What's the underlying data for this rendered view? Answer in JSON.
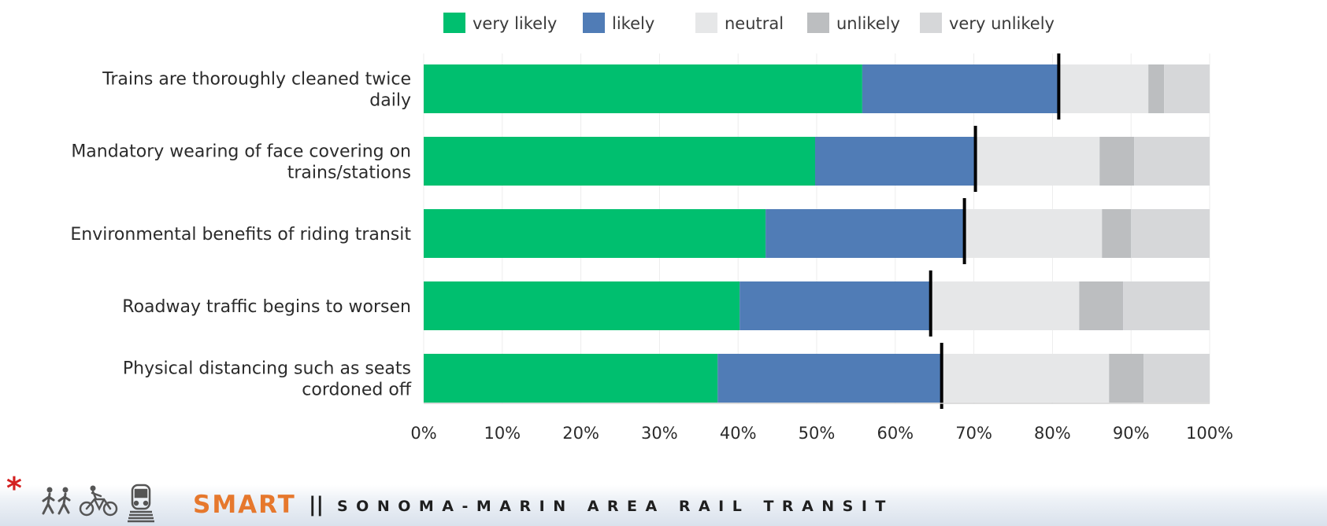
{
  "chart_data": {
    "type": "bar",
    "orientation": "horizontal",
    "stacked": true,
    "categories": [
      "Trains are thoroughly cleaned twice daily",
      "Mandatory wearing of face covering on trains/stations",
      "Environmental benefits of riding transit",
      "Roadway traffic begins to worsen",
      "Physical distancing such as seats cordoned off"
    ],
    "series": [
      {
        "name": "very likely",
        "color": "#00bf6f",
        "values": [
          55.8,
          49.8,
          43.5,
          40.2,
          37.4
        ]
      },
      {
        "name": "likely",
        "color": "#507cb6",
        "values": [
          25.0,
          20.4,
          25.3,
          24.3,
          28.6
        ]
      },
      {
        "name": "neutral",
        "color": "#e6e7e8",
        "values": [
          11.4,
          15.8,
          17.5,
          18.9,
          21.2
        ]
      },
      {
        "name": "unlikely",
        "color": "#bcbec0",
        "values": [
          2.0,
          4.4,
          3.7,
          5.6,
          4.4
        ]
      },
      {
        "name": "very unlikely",
        "color": "#d6d7d9",
        "values": [
          5.8,
          9.6,
          10.0,
          11.0,
          8.4
        ]
      }
    ],
    "marker_values": [
      80.8,
      70.2,
      68.8,
      64.5,
      65.9
    ],
    "xlim": [
      0,
      100
    ],
    "x_ticks": [
      "0%",
      "10%",
      "20%",
      "30%",
      "40%",
      "50%",
      "60%",
      "70%",
      "80%",
      "90%",
      "100%"
    ],
    "grid": true,
    "legend_position": "top"
  },
  "footer": {
    "asterisk": "*",
    "brand": "SMART",
    "separator": "||",
    "tagline": "SONOMA-MARIN AREA RAIL TRANSIT",
    "icons": [
      "pedestrians-icon",
      "bicycle-icon",
      "train-icon"
    ]
  }
}
